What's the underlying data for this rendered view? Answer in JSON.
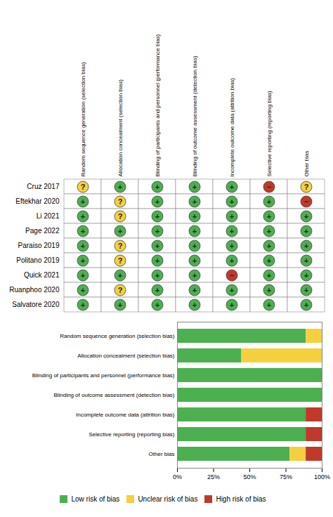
{
  "chart_data": [
    {
      "type": "heatmap",
      "categories": [
        "Cruz 2017",
        "Eftekhar 2020",
        "Li 2021",
        "Page 2022",
        "Paraiso 2019",
        "Politano 2019",
        "Quick 2021",
        "Ruanphoo 2020",
        "Salvatore 2020"
      ],
      "x": [
        "Random sequence generation (selection bias)",
        "Allocation concealment (selection bias)",
        "Blinding of participants and personnel (performance bias)",
        "Blinding of outcome assessment (detection bias)",
        "Incomplete outcome data (attrition bias)",
        "Selective reporting (reporting bias)",
        "Other bias"
      ],
      "cells": [
        [
          "?",
          "+",
          "+",
          "+",
          "+",
          "−",
          "?"
        ],
        [
          "+",
          "?",
          "+",
          "+",
          "+",
          "+",
          "−"
        ],
        [
          "+",
          "?",
          "+",
          "+",
          "+",
          "+",
          "+"
        ],
        [
          "+",
          "+",
          "+",
          "+",
          "+",
          "+",
          "+"
        ],
        [
          "+",
          "?",
          "+",
          "+",
          "+",
          "+",
          "+"
        ],
        [
          "+",
          "?",
          "+",
          "+",
          "+",
          "+",
          "+"
        ],
        [
          "+",
          "+",
          "+",
          "+",
          "−",
          "+",
          "+"
        ],
        [
          "+",
          "?",
          "+",
          "+",
          "+",
          "+",
          "+"
        ],
        [
          "+",
          "+",
          "+",
          "+",
          "+",
          "+",
          "+"
        ]
      ],
      "colors": {
        "+": "#4CAF50",
        "?": "#F4D03F",
        "−": "#C0392B"
      }
    },
    {
      "type": "bar",
      "orientation": "horizontal",
      "stacked": true,
      "categories": [
        "Random sequence generation (selection bias)",
        "Allocation concealment (selection bias)",
        "Blinding of participants and personnel (performance bias)",
        "Blinding of outcome assessment (detection bias)",
        "Incomplete outcome data (attrition bias)",
        "Selective reporting (reporting bias)",
        "Other bias"
      ],
      "series": [
        {
          "name": "Low risk of bias",
          "color": "#4CAF50",
          "values": [
            88.9,
            44.4,
            100.0,
            100.0,
            88.9,
            88.9,
            77.8
          ]
        },
        {
          "name": "Unclear risk of bias",
          "color": "#F4D03F",
          "values": [
            11.1,
            55.6,
            0.0,
            0.0,
            0.0,
            0.0,
            11.1
          ]
        },
        {
          "name": "High risk of bias",
          "color": "#C0392B",
          "values": [
            0.0,
            0.0,
            0.0,
            0.0,
            11.1,
            11.1,
            11.1
          ]
        }
      ],
      "xlim": [
        0,
        100
      ],
      "xticks": [
        {
          "value": 0,
          "label": "0%"
        },
        {
          "value": 25,
          "label": "25%"
        },
        {
          "value": 50,
          "label": "50%"
        },
        {
          "value": 75,
          "label": "75%"
        },
        {
          "value": 100,
          "label": "100%"
        }
      ],
      "legend": "bottom"
    }
  ]
}
